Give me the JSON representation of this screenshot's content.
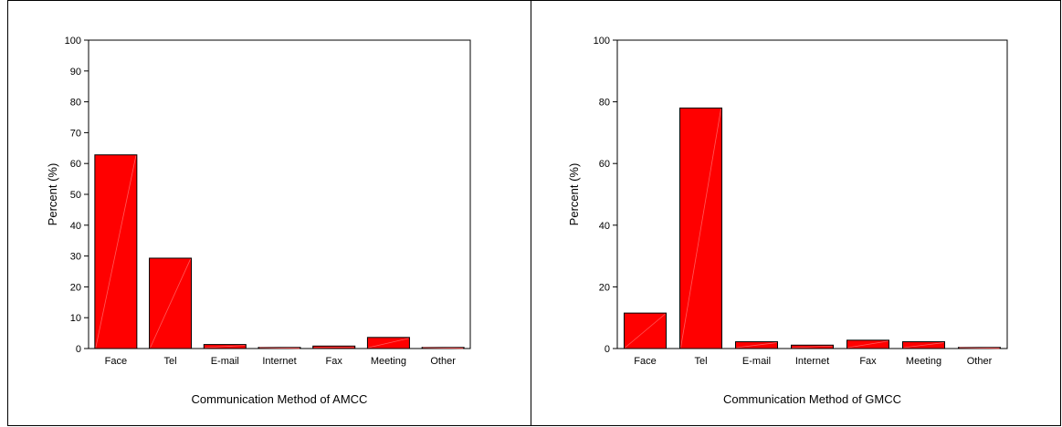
{
  "colors": {
    "bar_fill": "#ff0000",
    "bar_stroke": "#000000",
    "axis": "#000000"
  },
  "chart_data": [
    {
      "type": "bar",
      "title": "",
      "xlabel": "Communication Method of AMCC",
      "ylabel": "Percent (%)",
      "ylim": [
        0,
        100
      ],
      "yticks": [
        0,
        10,
        20,
        30,
        40,
        50,
        60,
        70,
        80,
        90,
        100
      ],
      "categories": [
        "Face",
        "Tel",
        "E-mail",
        "Internet",
        "Fax",
        "Meeting",
        "Other"
      ],
      "values": [
        62.8,
        29.3,
        1.3,
        0.2,
        0.8,
        3.6,
        0.2
      ],
      "grid": false
    },
    {
      "type": "bar",
      "title": "",
      "xlabel": "Communication Method of GMCC",
      "ylabel": "Percent (%)",
      "ylim": [
        0,
        100
      ],
      "yticks": [
        0,
        20,
        40,
        60,
        80,
        100
      ],
      "categories": [
        "Face",
        "Tel",
        "E-mail",
        "Internet",
        "Fax",
        "Meeting",
        "Other"
      ],
      "values": [
        11.5,
        78.0,
        2.2,
        1.1,
        2.7,
        2.2,
        0.3
      ],
      "grid": false
    }
  ]
}
